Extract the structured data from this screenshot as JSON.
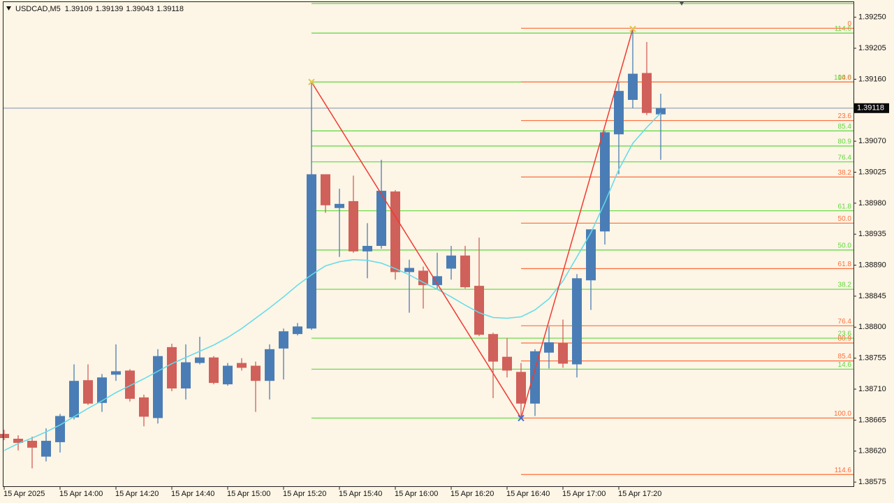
{
  "chart_data": {
    "type": "candlestick",
    "symbol": "USDCAD,M5",
    "categories": [
      "15 Apr 2025",
      null,
      null,
      null,
      "15 Apr 14:00",
      null,
      null,
      null,
      "15 Apr 14:20",
      null,
      null,
      null,
      "15 Apr 14:40",
      null,
      null,
      null,
      "15 Apr 15:00",
      null,
      null,
      null,
      "15 Apr 15:20",
      null,
      null,
      null,
      "15 Apr 15:40",
      null,
      null,
      null,
      "15 Apr 16:00",
      null,
      null,
      null,
      "15 Apr 16:20",
      null,
      null,
      null,
      "15 Apr 16:40",
      null,
      null,
      null,
      "15 Apr 17:00",
      null,
      null,
      null,
      "15 Apr 17:20",
      null,
      null,
      null
    ],
    "open": [
      1.38645,
      1.38638,
      1.38635,
      1.38612,
      1.38633,
      1.38669,
      1.38723,
      1.3869,
      1.38731,
      1.38737,
      1.38698,
      1.38668,
      1.38771,
      1.38711,
      1.38748,
      1.38756,
      1.38717,
      1.38748,
      1.38744,
      1.38722,
      1.38769,
      1.3879,
      1.38798,
      1.39022,
      1.38973,
      1.38983,
      1.3891,
      1.38918,
      1.38997,
      1.3888,
      1.38882,
      1.38861,
      1.38885,
      1.38904,
      1.3886,
      1.3879,
      1.38757,
      1.38735,
      1.38689,
      1.38763,
      1.38777,
      1.38746,
      1.38868,
      1.38939,
      1.3908,
      1.3913,
      1.39169,
      1.39109
    ],
    "high": [
      1.38651,
      1.38643,
      1.38641,
      1.38653,
      1.38674,
      1.38746,
      1.38746,
      1.38732,
      1.38775,
      1.38739,
      1.38702,
      1.38768,
      1.38776,
      1.38775,
      1.38786,
      1.38758,
      1.38748,
      1.38755,
      1.3875,
      1.38775,
      1.38798,
      1.38806,
      1.39156,
      1.39022,
      1.39001,
      1.3902,
      1.38951,
      1.39043,
      1.38999,
      1.38898,
      1.38888,
      1.38908,
      1.38918,
      1.38918,
      1.3893,
      1.38792,
      1.38784,
      1.38748,
      1.38768,
      1.38801,
      1.38811,
      1.38877,
      1.38942,
      1.39085,
      1.39156,
      1.39233,
      1.39214,
      1.39139
    ],
    "low": [
      1.38636,
      1.38621,
      1.38595,
      1.38605,
      1.38618,
      1.38666,
      1.38687,
      1.38677,
      1.38722,
      1.38692,
      1.38656,
      1.3866,
      1.38707,
      1.38695,
      1.38746,
      1.38717,
      1.38715,
      1.38737,
      1.38677,
      1.38695,
      1.38724,
      1.38788,
      1.38796,
      1.38966,
      1.38902,
      1.38908,
      1.38871,
      1.38914,
      1.38869,
      1.38821,
      1.38827,
      1.38854,
      1.38869,
      1.38856,
      1.38787,
      1.38697,
      1.38727,
      1.38668,
      1.38671,
      1.3874,
      1.38741,
      1.38727,
      1.38825,
      1.3892,
      1.39022,
      1.39118,
      1.39108,
      1.39043
    ],
    "close": [
      1.38639,
      1.38632,
      1.38625,
      1.38635,
      1.38671,
      1.38722,
      1.38689,
      1.38727,
      1.38736,
      1.38696,
      1.3867,
      1.38758,
      1.38711,
      1.38749,
      1.38756,
      1.38719,
      1.38744,
      1.38741,
      1.38722,
      1.38768,
      1.38794,
      1.38801,
      1.39022,
      1.38977,
      1.38979,
      1.3891,
      1.38918,
      1.38998,
      1.3888,
      1.38886,
      1.38861,
      1.38874,
      1.38904,
      1.38858,
      1.38789,
      1.3875,
      1.38737,
      1.38689,
      1.38765,
      1.38778,
      1.38747,
      1.38871,
      1.38942,
      1.39083,
      1.39143,
      1.39168,
      1.39111,
      1.39118
    ],
    "up_color": "#4a7db5",
    "down_color": "#d0605a",
    "ma": {
      "color": "#5fdcea",
      "values": [
        1.38621,
        1.38631,
        1.38639,
        1.38648,
        1.38658,
        1.3867,
        1.38682,
        1.38693,
        1.38705,
        1.38715,
        1.38725,
        1.38736,
        1.38747,
        1.38756,
        1.38765,
        1.38774,
        1.38785,
        1.38798,
        1.38813,
        1.38828,
        1.38844,
        1.38861,
        1.38876,
        1.38889,
        1.38895,
        1.38898,
        1.38897,
        1.38893,
        1.38885,
        1.38876,
        1.38865,
        1.38855,
        1.38844,
        1.38832,
        1.38821,
        1.38814,
        1.38813,
        1.38815,
        1.38825,
        1.38841,
        1.38867,
        1.38902,
        1.38937,
        1.38981,
        1.39029,
        1.39067,
        1.3909,
        1.39111
      ]
    },
    "zigzag": {
      "color": "#f03a32",
      "points": [
        {
          "index": 22,
          "value": 1.39156,
          "color": "#e0c64a"
        },
        {
          "index": 37,
          "value": 1.38668,
          "color": "#3a6fd8"
        },
        {
          "index": 45,
          "value": 1.39233,
          "color": "#e0c64a"
        }
      ]
    },
    "fibonacci": [
      {
        "color": "#5fd83c",
        "levels": [
          {
            "value": 1.3927,
            "label": null
          },
          {
            "value": 1.39227,
            "label": "114.6"
          },
          {
            "value": 1.39156,
            "label": "100.0"
          },
          {
            "value": 1.39085,
            "label": "85.4"
          },
          {
            "value": 1.39063,
            "label": "80.9"
          },
          {
            "value": 1.3904,
            "label": "76.4"
          },
          {
            "value": 1.38969,
            "label": "61.8"
          },
          {
            "value": 1.38912,
            "label": "50.0"
          },
          {
            "value": 1.38855,
            "label": "38.2"
          },
          {
            "value": 1.38784,
            "label": "23.6"
          },
          {
            "value": 1.38739,
            "label": "14.6"
          },
          {
            "value": 1.38668,
            "label": null
          }
        ]
      },
      {
        "color": "#fb6f3c",
        "levels": [
          {
            "value": 1.39234,
            "label": "0"
          },
          {
            "value": 1.39156,
            "label": "14.6"
          },
          {
            "value": 1.391,
            "label": "23.6"
          },
          {
            "value": 1.39018,
            "label": "38.2"
          },
          {
            "value": 1.38951,
            "label": "50.0"
          },
          {
            "value": 1.38885,
            "label": "61.8"
          },
          {
            "value": 1.38802,
            "label": "76.4"
          },
          {
            "value": 1.38777,
            "label": "80.9"
          },
          {
            "value": 1.38751,
            "label": "85.4"
          },
          {
            "value": 1.38668,
            "label": "100.0"
          },
          {
            "value": 1.38586,
            "label": "114.6"
          }
        ]
      }
    ],
    "bid_line_color": "#8d9db3",
    "ylim": [
      1.38568,
      1.39272
    ],
    "yticks": [
      {
        "value": 1.3925,
        "label": "1.39250"
      },
      1.39205,
      {
        "value": 1.3916,
        "label": "1.39160"
      },
      {
        "value": 1.3907,
        "label": "1.39070"
      },
      1.39025,
      {
        "value": 1.3898,
        "label": "1.38980"
      },
      1.38935,
      {
        "value": 1.3889,
        "label": "1.38890"
      },
      1.38845,
      {
        "value": 1.388,
        "label": "1.38800"
      },
      1.38755,
      {
        "value": 1.3871,
        "label": "1.38710"
      },
      1.38665,
      {
        "value": 1.3862,
        "label": "1.38620"
      },
      1.38575
    ]
  }
}
